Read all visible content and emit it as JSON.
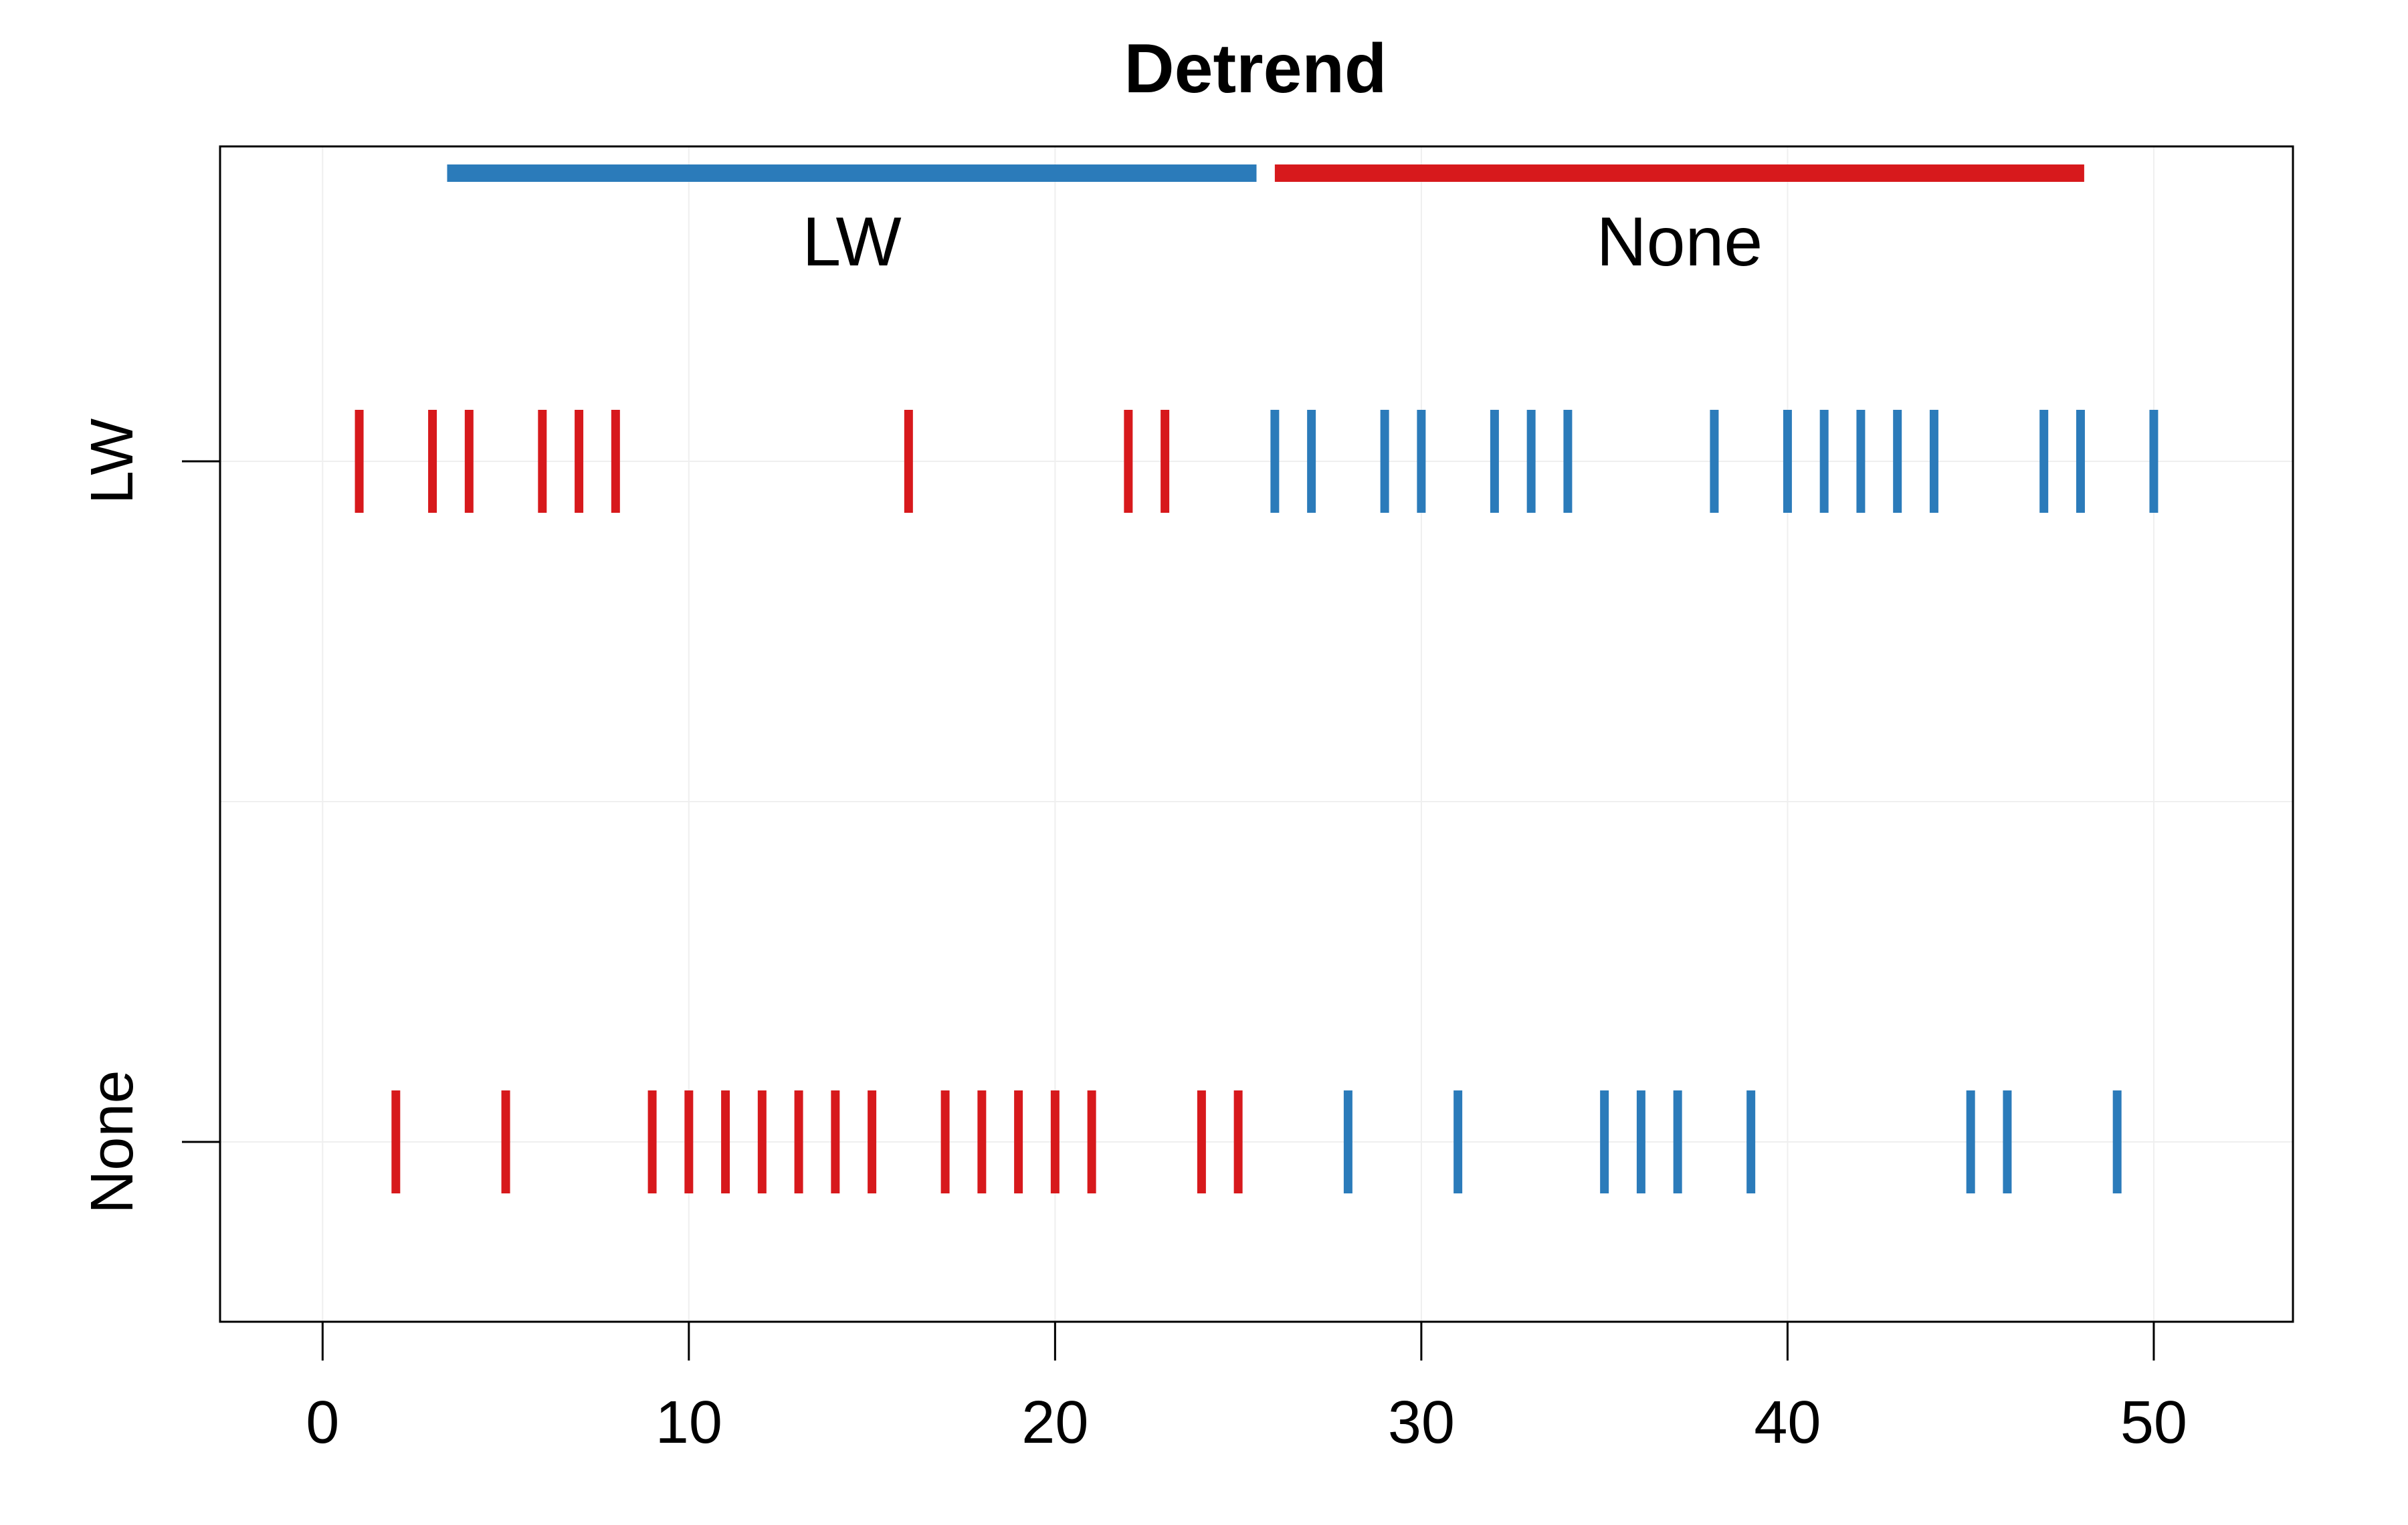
{
  "chart_data": {
    "type": "scatter",
    "title": "Detrend",
    "xlabel": "",
    "ylabel": "",
    "xlim": [
      -2.8,
      53.8
    ],
    "x_ticks": [
      0,
      10,
      20,
      30,
      40,
      50
    ],
    "x_tick_labels": [
      "0",
      "10",
      "20",
      "30",
      "40",
      "50"
    ],
    "categories": [
      "None",
      "LW"
    ],
    "grid": true,
    "colors": {
      "blue": "#2b7bba",
      "red": "#d7191c"
    },
    "header_segments": [
      {
        "label": "LW",
        "x_start": 3.4,
        "x_end": 25.5,
        "color": "#2b7bba"
      },
      {
        "label": "None",
        "x_start": 26.0,
        "x_end": 48.1,
        "color": "#d7191c"
      }
    ],
    "series": [
      {
        "category": "LW",
        "points": [
          {
            "x": 1,
            "color": "red"
          },
          {
            "x": 3,
            "color": "red"
          },
          {
            "x": 4,
            "color": "red"
          },
          {
            "x": 6,
            "color": "red"
          },
          {
            "x": 7,
            "color": "red"
          },
          {
            "x": 8,
            "color": "red"
          },
          {
            "x": 16,
            "color": "red"
          },
          {
            "x": 22,
            "color": "red"
          },
          {
            "x": 23,
            "color": "red"
          },
          {
            "x": 26,
            "color": "blue"
          },
          {
            "x": 27,
            "color": "blue"
          },
          {
            "x": 29,
            "color": "blue"
          },
          {
            "x": 30,
            "color": "blue"
          },
          {
            "x": 32,
            "color": "blue"
          },
          {
            "x": 33,
            "color": "blue"
          },
          {
            "x": 34,
            "color": "blue"
          },
          {
            "x": 38,
            "color": "blue"
          },
          {
            "x": 40,
            "color": "blue"
          },
          {
            "x": 41,
            "color": "blue"
          },
          {
            "x": 42,
            "color": "blue"
          },
          {
            "x": 43,
            "color": "blue"
          },
          {
            "x": 44,
            "color": "blue"
          },
          {
            "x": 47,
            "color": "blue"
          },
          {
            "x": 48,
            "color": "blue"
          },
          {
            "x": 50,
            "color": "blue"
          }
        ]
      },
      {
        "category": "None",
        "points": [
          {
            "x": 2,
            "color": "red"
          },
          {
            "x": 5,
            "color": "red"
          },
          {
            "x": 9,
            "color": "red"
          },
          {
            "x": 10,
            "color": "red"
          },
          {
            "x": 11,
            "color": "red"
          },
          {
            "x": 12,
            "color": "red"
          },
          {
            "x": 13,
            "color": "red"
          },
          {
            "x": 14,
            "color": "red"
          },
          {
            "x": 15,
            "color": "red"
          },
          {
            "x": 17,
            "color": "red"
          },
          {
            "x": 18,
            "color": "red"
          },
          {
            "x": 19,
            "color": "red"
          },
          {
            "x": 20,
            "color": "red"
          },
          {
            "x": 21,
            "color": "red"
          },
          {
            "x": 24,
            "color": "red"
          },
          {
            "x": 25,
            "color": "red"
          },
          {
            "x": 28,
            "color": "blue"
          },
          {
            "x": 31,
            "color": "blue"
          },
          {
            "x": 35,
            "color": "blue"
          },
          {
            "x": 36,
            "color": "blue"
          },
          {
            "x": 37,
            "color": "blue"
          },
          {
            "x": 39,
            "color": "blue"
          },
          {
            "x": 45,
            "color": "blue"
          },
          {
            "x": 46,
            "color": "blue"
          },
          {
            "x": 49,
            "color": "blue"
          }
        ]
      }
    ]
  }
}
